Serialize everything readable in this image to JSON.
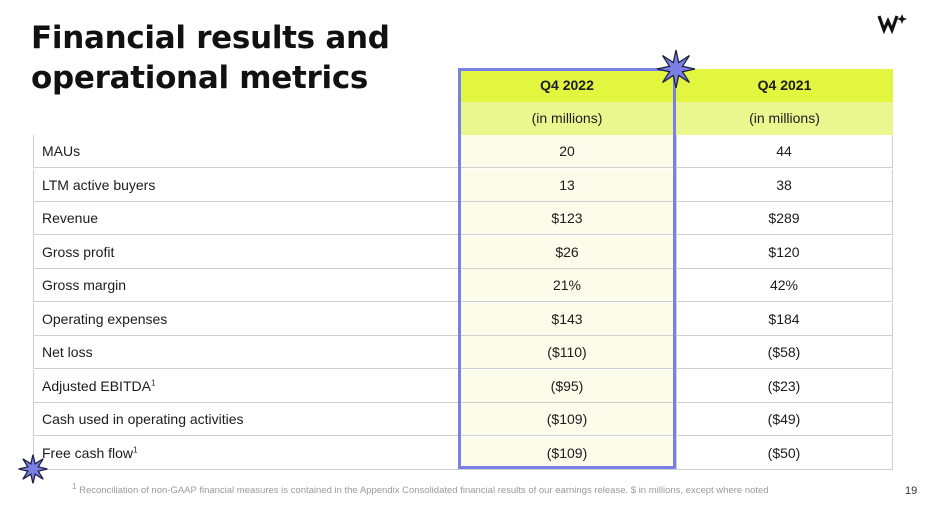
{
  "slide": {
    "title_line1": "Financial results and",
    "title_line2": "operational metrics",
    "page_number": "19"
  },
  "table": {
    "columns": [
      "Q4 2022",
      "Q4 2021"
    ],
    "units": [
      "(in millions)",
      "(in millions)"
    ],
    "rows": [
      {
        "label": "MAUs",
        "note": "",
        "q4_2022": "20",
        "q4_2021": "44"
      },
      {
        "label": "LTM active buyers",
        "note": "",
        "q4_2022": "13",
        "q4_2021": "38"
      },
      {
        "label": "Revenue",
        "note": "",
        "q4_2022": "$123",
        "q4_2021": "$289"
      },
      {
        "label": "Gross profit",
        "note": "",
        "q4_2022": "$26",
        "q4_2021": "$120"
      },
      {
        "label": "Gross margin",
        "note": "",
        "q4_2022": "21%",
        "q4_2021": "42%"
      },
      {
        "label": "Operating expenses",
        "note": "",
        "q4_2022": "$143",
        "q4_2021": "$184"
      },
      {
        "label": "Net loss",
        "note": "",
        "q4_2022": "($110)",
        "q4_2021": "($58)"
      },
      {
        "label": "Adjusted EBITDA",
        "note": "1",
        "q4_2022": "($95)",
        "q4_2021": "($23)"
      },
      {
        "label": "Cash used in operating activities",
        "note": "",
        "q4_2022": "($109)",
        "q4_2021": "($49)"
      },
      {
        "label": "Free cash flow",
        "note": "1",
        "q4_2022": "($109)",
        "q4_2021": "($50)"
      }
    ]
  },
  "footnote": {
    "marker": "1",
    "text": " Reconciliation of non-GAAP financial measures is contained in the Appendix Consolidated financial results of our earnings release. $ in millions, except where noted"
  },
  "colors": {
    "header_fill": "#e2f53f",
    "subheader_fill": "#eaf78f",
    "highlight": "#7a80e6",
    "star": "#7a80e6"
  }
}
